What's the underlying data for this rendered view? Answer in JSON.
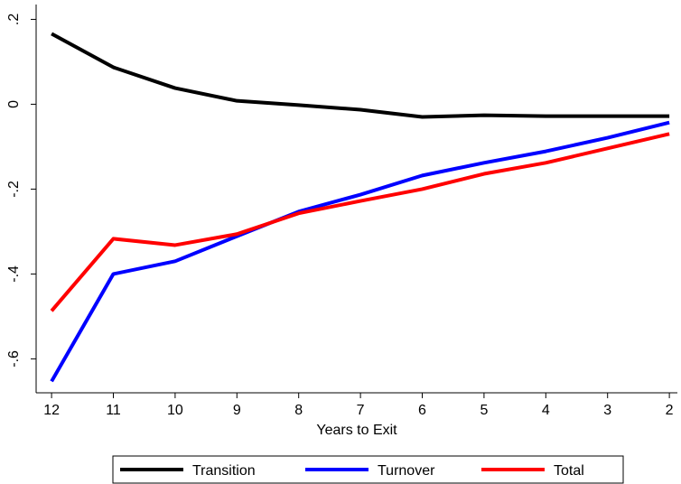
{
  "chart_data": {
    "type": "line",
    "x_label": "Years to Exit",
    "x": [
      12,
      11,
      10,
      9,
      8,
      7,
      6,
      5,
      4,
      3,
      2
    ],
    "xlim": [
      12.25,
      1.87
    ],
    "xticks": [
      12,
      11,
      10,
      9,
      8,
      7,
      6,
      5,
      4,
      3,
      2
    ],
    "ylim": [
      -0.68,
      0.235
    ],
    "yticks": [
      {
        "value": 0.2,
        "label": ".2"
      },
      0,
      {
        "value": -0.2,
        "label": "-.2"
      },
      {
        "value": -0.4,
        "label": "-.4"
      },
      {
        "value": -0.6,
        "label": "-.6"
      }
    ],
    "legend": "bottom",
    "series": [
      {
        "name": "Transition",
        "color": "#000000",
        "values": [
          0.166,
          0.087,
          0.038,
          0.008,
          -0.002,
          -0.013,
          -0.03,
          -0.026,
          -0.028,
          -0.028,
          -0.028
        ]
      },
      {
        "name": "Turnover",
        "color": "#0000ff",
        "values": [
          -0.653,
          -0.4,
          -0.37,
          -0.311,
          -0.253,
          -0.213,
          -0.168,
          -0.138,
          -0.111,
          -0.079,
          -0.043
        ]
      },
      {
        "name": "Total",
        "color": "#ff0000",
        "values": [
          -0.487,
          -0.317,
          -0.332,
          -0.306,
          -0.257,
          -0.228,
          -0.2,
          -0.164,
          -0.138,
          -0.104,
          -0.07
        ]
      }
    ]
  }
}
